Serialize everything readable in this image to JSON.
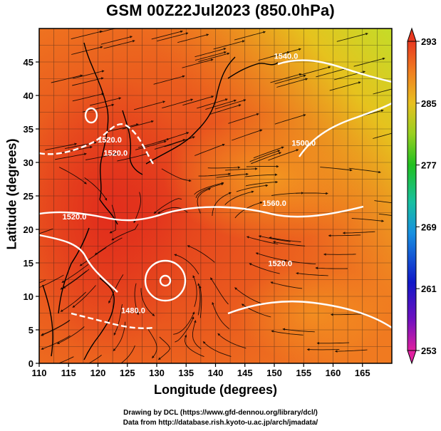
{
  "title": "GSM 00Z22Jul2023 (850.0hPa)",
  "xlabel": "Longitude (degrees)",
  "ylabel": "Latitude  (degrees)",
  "credits": [
    "Drawing by DCL (https://www.gfd-dennou.org/library/dcl/)",
    "Data from http://database.rish.kyoto-u.ac.jp/arch/jmadata/"
  ],
  "map": {
    "lon_range": [
      110,
      170
    ],
    "lat_range": [
      0,
      50
    ],
    "lon_ticks": [
      "110",
      "115",
      "120",
      "125",
      "130",
      "135",
      "140",
      "145",
      "150",
      "155",
      "160",
      "165"
    ],
    "lat_ticks": [
      "0",
      "5",
      "10",
      "15",
      "20",
      "25",
      "30",
      "35",
      "40",
      "45"
    ],
    "colorbar_ticks": [
      "293",
      "285",
      "277",
      "269",
      "261",
      "253"
    ],
    "colorbar_range": [
      253,
      293
    ],
    "contour_labels": [
      {
        "text": "1520.0",
        "lon": 116,
        "lat": 21.5
      },
      {
        "text": "1520.0",
        "lon": 122,
        "lat": 33
      },
      {
        "text": "1520.0",
        "lon": 123,
        "lat": 31
      },
      {
        "text": "1560.0",
        "lon": 150,
        "lat": 23.5
      },
      {
        "text": "1500.0",
        "lon": 155,
        "lat": 32.5
      },
      {
        "text": "1520.0",
        "lon": 151,
        "lat": 14.5
      },
      {
        "text": "1480.0",
        "lon": 126,
        "lat": 7.5
      },
      {
        "text": "1540.0",
        "lon": 152,
        "lat": 45.5
      }
    ],
    "colors": {
      "warm": "#e8401c",
      "mid": "#f07820",
      "north": "#c8d820",
      "coast": "#000000",
      "contour": "#ffffff"
    }
  }
}
